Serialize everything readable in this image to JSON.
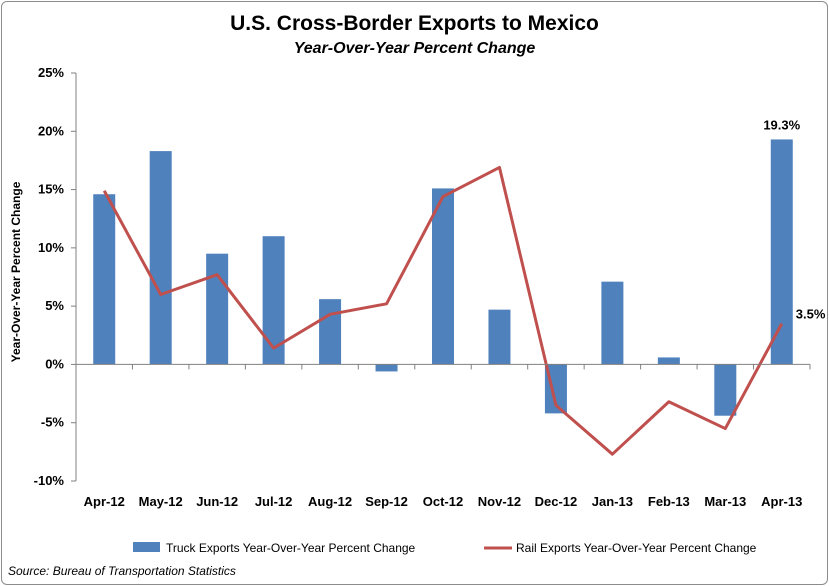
{
  "chart_data": {
    "type": "bar",
    "title": "U.S. Cross-Border Exports to Mexico",
    "subtitle": "Year-Over-Year Percent Change",
    "ylabel": "Year-Over-Year Percent Change",
    "xlabel": "",
    "ylim": [
      -10,
      25
    ],
    "y_ticks": [
      {
        "value": 25,
        "label": "25%"
      },
      {
        "value": 20,
        "label": "20%"
      },
      {
        "value": 15,
        "label": "15%"
      },
      {
        "value": 10,
        "label": "10%"
      },
      {
        "value": 5,
        "label": "5%"
      },
      {
        "value": 0,
        "label": "0%"
      },
      {
        "value": -5,
        "label": "-5%"
      },
      {
        "value": -10,
        "label": "-10%"
      }
    ],
    "categories": [
      "Apr-12",
      "May-12",
      "Jun-12",
      "Jul-12",
      "Aug-12",
      "Sep-12",
      "Oct-12",
      "Nov-12",
      "Dec-12",
      "Jan-13",
      "Feb-13",
      "Mar-13",
      "Apr-13"
    ],
    "series": [
      {
        "name": "Truck Exports Year-Over-Year Percent Change",
        "type": "bar",
        "color": "#4f81bd",
        "values": [
          14.6,
          18.3,
          9.5,
          11.0,
          5.6,
          -0.6,
          15.1,
          4.7,
          -4.2,
          7.1,
          0.6,
          -4.4,
          19.3
        ]
      },
      {
        "name": "Rail Exports Year-Over-Year Percent Change",
        "type": "line",
        "color": "#c0504d",
        "values": [
          14.9,
          6.0,
          7.7,
          1.4,
          4.3,
          5.2,
          14.4,
          16.9,
          -3.5,
          -7.7,
          -3.2,
          -5.5,
          3.5
        ]
      }
    ],
    "data_labels": [
      {
        "series": 0,
        "index": 12,
        "text": "19.3%"
      },
      {
        "series": 1,
        "index": 12,
        "text": "3.5%"
      }
    ],
    "legend": "bottom",
    "grid": false
  },
  "source": "Source: Bureau of Transportation Statistics"
}
